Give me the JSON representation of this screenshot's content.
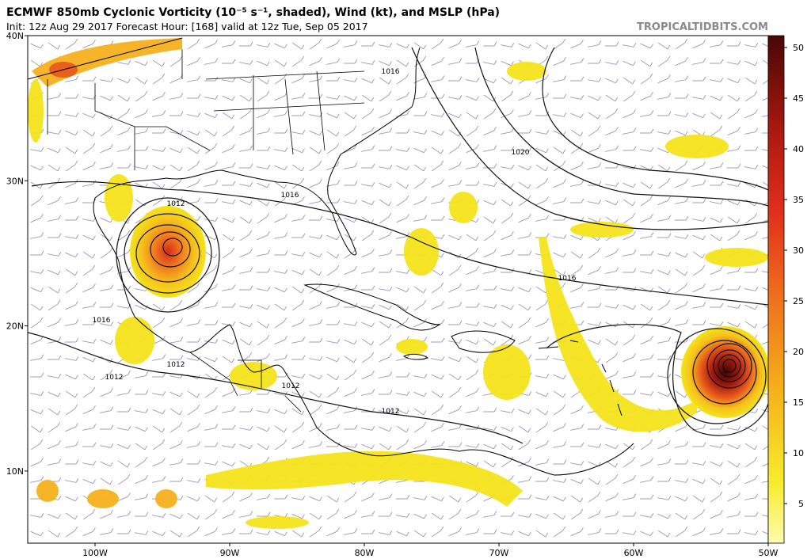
{
  "header": {
    "title": "ECMWF 850mb Cyclonic Vorticity (10⁻⁵ s⁻¹, shaded), Wind (kt), and MSLP (hPa)",
    "init": "Init: 12z Aug 29 2017   Forecast Hour: [168]   valid at 12z Tue, Sep 05 2017",
    "source": "TROPICALTIDBITS.COM"
  },
  "map": {
    "lat_labels": [
      "40N",
      "30N",
      "20N",
      "10N"
    ],
    "lon_labels": [
      "100W",
      "90W",
      "80W",
      "70W",
      "60W",
      "50W"
    ],
    "isobar_labels": [
      "1016",
      "1020",
      "1016",
      "1012",
      "1016",
      "1016",
      "1012",
      "1012",
      "1012",
      "1012"
    ]
  },
  "colorbar": {
    "labels": [
      "50",
      "45",
      "40",
      "35",
      "30",
      "25",
      "20",
      "15",
      "10",
      "5"
    ]
  }
}
